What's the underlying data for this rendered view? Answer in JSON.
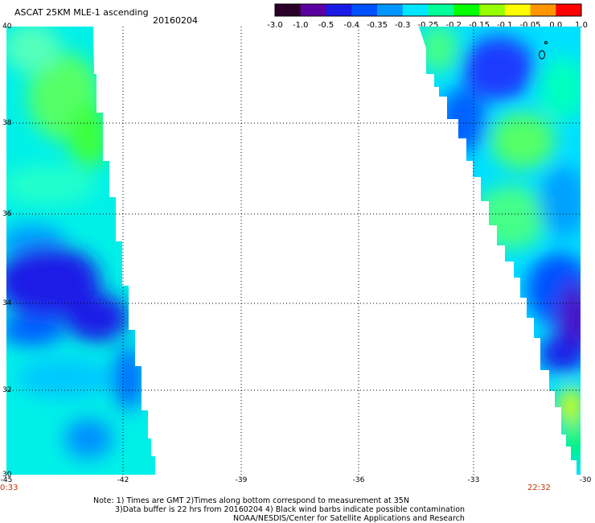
{
  "header": {
    "title": "ASCAT 25KM MLE-1 ascending",
    "date": "20160204"
  },
  "colorbar": {
    "ticks": [
      "-3.0",
      "-1.0",
      "-0.5",
      "-0.4",
      "-0.35",
      "-0.3",
      "-0.25",
      "-0.2",
      "-0.15",
      "-0.1",
      "-0.05",
      "0.0",
      "1.0"
    ],
    "colors": [
      "#2a0028",
      "#5a00a0",
      "#1a1ae6",
      "#0050ff",
      "#0096ff",
      "#00e6ff",
      "#00ff96",
      "#00ff00",
      "#96ff00",
      "#ffff00",
      "#ff9600",
      "#ff0000"
    ]
  },
  "axes": {
    "lat_ticks": [
      "40",
      "38",
      "36",
      "34",
      "32",
      "30"
    ],
    "lon_ticks": [
      "-45",
      "-42",
      "-39",
      "-36",
      "-33",
      "-30"
    ],
    "lat_range": [
      30,
      40
    ],
    "lon_range": [
      -45,
      -30
    ]
  },
  "times": {
    "left": "0:33",
    "right": "22:32"
  },
  "notes": {
    "line1": "Note: 1) Times are GMT 2)Times along bottom correspond to measurement at 35N",
    "line2": "3)Data buffer is 22 hrs from 20160204 4) Black wind barbs indicate possible contamination",
    "line3": "NOAA/NESDIS/Center for Satellite Applications and Research"
  }
}
